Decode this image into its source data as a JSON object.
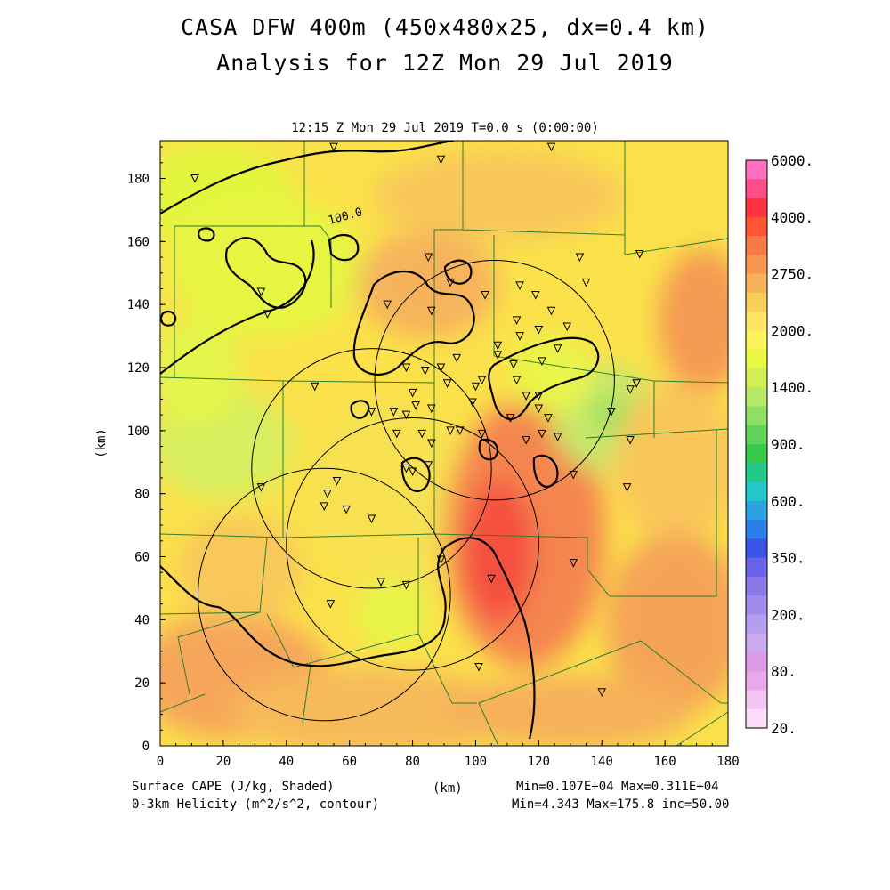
{
  "title": {
    "line1": "CASA DFW 400m (450x480x25, dx=0.4 km)",
    "line2": "Analysis for 12Z Mon 29 Jul 2019"
  },
  "subtitle": "12:15 Z Mon 29 Jul 2019    T=0.0 s (0:00:00)",
  "chart_data": {
    "type": "heatmap",
    "xlabel": "(km)",
    "ylabel": "(km)",
    "xlim": [
      0,
      180
    ],
    "ylim": [
      0,
      192
    ],
    "xticks": [
      0,
      20,
      40,
      60,
      80,
      100,
      120,
      140,
      160,
      180
    ],
    "yticks": [
      0,
      20,
      40,
      60,
      80,
      100,
      120,
      140,
      160,
      180
    ],
    "contour_label": "100.0",
    "colorbar": {
      "levels": [
        "6000.",
        "4000.",
        "2750.",
        "2000.",
        "1400.",
        "900.",
        "600.",
        "350.",
        "200.",
        "80.",
        "20."
      ],
      "colors": [
        "#ff6fbf",
        "#ff4d8a",
        "#ff3344",
        "#ff5533",
        "#f77a48",
        "#f7974f",
        "#f6b258",
        "#f9cf5a",
        "#fde465",
        "#fbf45a",
        "#eaf742",
        "#d2ee55",
        "#b7e868",
        "#8fdf60",
        "#5fd35a",
        "#38c94a",
        "#24c88b",
        "#23c7c9",
        "#2aa3df",
        "#2b7fe8",
        "#3a55e8",
        "#6a62e6",
        "#8b77e6",
        "#a08bea",
        "#b49ef0",
        "#cba9ee",
        "#dd99e5",
        "#e9a8e9",
        "#f4c4f2",
        "#fcddf9"
      ]
    },
    "radars": [
      {
        "x": 52,
        "y": 48,
        "r": 40
      },
      {
        "x": 67,
        "y": 88,
        "r": 38
      },
      {
        "x": 80,
        "y": 64,
        "r": 40
      },
      {
        "x": 106,
        "y": 116,
        "r": 38
      }
    ],
    "stations": [
      [
        11,
        180
      ],
      [
        55,
        190
      ],
      [
        89,
        192
      ],
      [
        89,
        186
      ],
      [
        124,
        190
      ],
      [
        85,
        155
      ],
      [
        92,
        147
      ],
      [
        133,
        155
      ],
      [
        135,
        147
      ],
      [
        114,
        146
      ],
      [
        119,
        143
      ],
      [
        113,
        135
      ],
      [
        103,
        143
      ],
      [
        124,
        138
      ],
      [
        86,
        138
      ],
      [
        32,
        144
      ],
      [
        34,
        137
      ],
      [
        72,
        140
      ],
      [
        120,
        132
      ],
      [
        129,
        133
      ],
      [
        126,
        126
      ],
      [
        114,
        130
      ],
      [
        107,
        127
      ],
      [
        94,
        123
      ],
      [
        78,
        120
      ],
      [
        89,
        120
      ],
      [
        84,
        119
      ],
      [
        121,
        122
      ],
      [
        112,
        121
      ],
      [
        107,
        124
      ],
      [
        120,
        111
      ],
      [
        116,
        111
      ],
      [
        120,
        107
      ],
      [
        123,
        104
      ],
      [
        113,
        116
      ],
      [
        102,
        116
      ],
      [
        91,
        115
      ],
      [
        100,
        114
      ],
      [
        49,
        114
      ],
      [
        80,
        112
      ],
      [
        74,
        106
      ],
      [
        67,
        106
      ],
      [
        78,
        105
      ],
      [
        81,
        108
      ],
      [
        86,
        107
      ],
      [
        99,
        109
      ],
      [
        111,
        104
      ],
      [
        92,
        100
      ],
      [
        95,
        100
      ],
      [
        102,
        99
      ],
      [
        121,
        99
      ],
      [
        126,
        98
      ],
      [
        83,
        99
      ],
      [
        75,
        99
      ],
      [
        116,
        97
      ],
      [
        86,
        96
      ],
      [
        149,
        97
      ],
      [
        131,
        86
      ],
      [
        85,
        89
      ],
      [
        78,
        88
      ],
      [
        80,
        87
      ],
      [
        56,
        84
      ],
      [
        53,
        80
      ],
      [
        32,
        82
      ],
      [
        52,
        76
      ],
      [
        59,
        75
      ],
      [
        67,
        72
      ],
      [
        89,
        59
      ],
      [
        131,
        58
      ],
      [
        70,
        52
      ],
      [
        78,
        51
      ],
      [
        105,
        53
      ],
      [
        54,
        45
      ],
      [
        101,
        25
      ],
      [
        140,
        17
      ],
      [
        152,
        156
      ],
      [
        151,
        115
      ],
      [
        149,
        113
      ],
      [
        148,
        82
      ],
      [
        143,
        106
      ]
    ]
  },
  "footer": {
    "left1": "Surface CAPE (J/kg, Shaded)",
    "left2": "0-3km Helicity (m^2/s^2, contour)",
    "center": "(km)",
    "right1": "Min=0.107E+04 Max=0.311E+04",
    "right2": "Min=4.343 Max=175.8 inc=50.00"
  }
}
